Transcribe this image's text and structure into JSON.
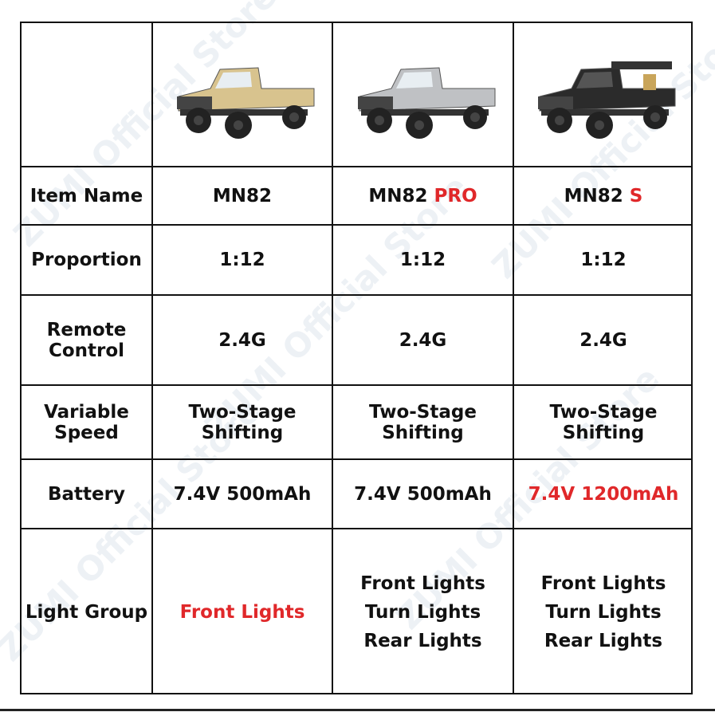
{
  "watermark": "ZUMI Official Store",
  "products": [
    {
      "name": "MN82",
      "name_suffix": "",
      "image": "truck-beige",
      "body_color": "#d8c38e"
    },
    {
      "name": "MN82",
      "name_suffix": "PRO",
      "image": "truck-silver",
      "body_color": "#bfc1c4"
    },
    {
      "name": "MN82",
      "name_suffix": "S",
      "image": "truck-black",
      "body_color": "#2b2b2b"
    }
  ],
  "rows": [
    {
      "label": "Item Name"
    },
    {
      "label": "Proportion",
      "values": [
        "1:12",
        "1:12",
        "1:12"
      ]
    },
    {
      "label": "Remote Control",
      "values": [
        "2.4G",
        "2.4G",
        "2.4G"
      ]
    },
    {
      "label": "Variable Speed",
      "values": [
        "Two-Stage Shifting",
        "Two-Stage Shifting",
        "Two-Stage Shifting"
      ]
    },
    {
      "label": "Battery",
      "values": [
        "7.4V 500mAh",
        "7.4V 500mAh",
        "7.4V 1200mAh"
      ]
    },
    {
      "label": "Light Group",
      "values": [
        "Front Lights",
        "Front Lights\nTurn Lights\nRear Lights",
        "Front Lights\nTurn Lights\nRear Lights"
      ]
    }
  ],
  "highlight_color": "#e0282a"
}
